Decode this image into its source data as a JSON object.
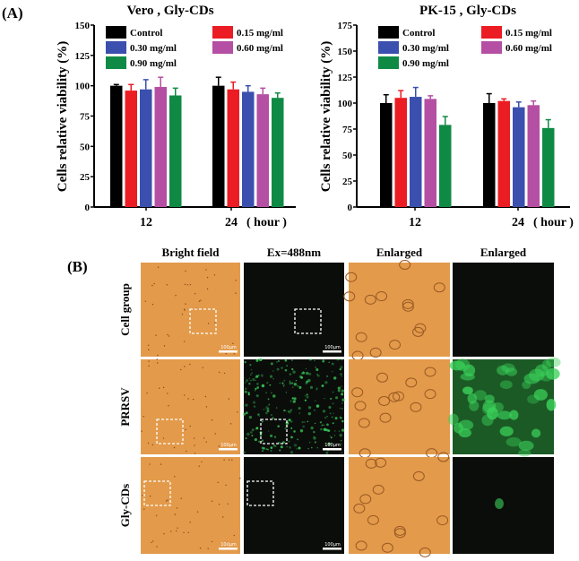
{
  "panel_labels": {
    "a": "(A)",
    "b": "(B)"
  },
  "chart_data": [
    {
      "type": "bar",
      "title": "Vero , Gly-CDs",
      "ylabel": "Cells relative viability (%)",
      "xlabel": "( hour )",
      "categories": [
        "12",
        "24"
      ],
      "ylim": [
        0,
        150
      ],
      "yticks": [
        "0",
        "25",
        "50",
        "75",
        "100",
        "125",
        "150"
      ],
      "legend_position": "top",
      "series": [
        {
          "name": "Control",
          "color": "#000000",
          "values": [
            100,
            100
          ],
          "errors": [
            1,
            7
          ]
        },
        {
          "name": "0.15 mg/ml",
          "color": "#ec1c24",
          "values": [
            96,
            97
          ],
          "errors": [
            5,
            6
          ]
        },
        {
          "name": "0.30 mg/ml",
          "color": "#3b4fae",
          "values": [
            97,
            95
          ],
          "errors": [
            8,
            5
          ]
        },
        {
          "name": "0.60 mg/ml",
          "color": "#b54fa3",
          "values": [
            99,
            93
          ],
          "errors": [
            8,
            5
          ]
        },
        {
          "name": "0.90 mg/ml",
          "color": "#0f8a45",
          "values": [
            92,
            90
          ],
          "errors": [
            6,
            4
          ]
        }
      ]
    },
    {
      "type": "bar",
      "title": "PK-15 , Gly-CDs",
      "ylabel": "Cells relative viability (%)",
      "xlabel": "( hour )",
      "categories": [
        "12",
        "24"
      ],
      "ylim": [
        0,
        175
      ],
      "yticks": [
        "0",
        "25",
        "50",
        "75",
        "100",
        "125",
        "150",
        "175"
      ],
      "legend_position": "top",
      "series": [
        {
          "name": "Control",
          "color": "#000000",
          "values": [
            100,
            100
          ],
          "errors": [
            8,
            9
          ]
        },
        {
          "name": "0.15 mg/ml",
          "color": "#ec1c24",
          "values": [
            105,
            102
          ],
          "errors": [
            7,
            2
          ]
        },
        {
          "name": "0.30 mg/ml",
          "color": "#3b4fae",
          "values": [
            106,
            96
          ],
          "errors": [
            9,
            5
          ]
        },
        {
          "name": "0.60 mg/ml",
          "color": "#b54fa3",
          "values": [
            104,
            98
          ],
          "errors": [
            3,
            4
          ]
        },
        {
          "name": "0.90 mg/ml",
          "color": "#0f8a45",
          "values": [
            79,
            76
          ],
          "errors": [
            8,
            8
          ]
        }
      ]
    }
  ],
  "micrographs": {
    "columns": [
      "Bright field",
      "Ex=488nm",
      "Enlarged",
      "Enlarged"
    ],
    "rows": [
      "Cell group",
      "PRRSV",
      "Gly-CDs"
    ],
    "scale_bar": "100μm",
    "colors": {
      "bright": "#e39a4a",
      "dark": "#0b0d0b",
      "green": "#3bd15a"
    }
  }
}
